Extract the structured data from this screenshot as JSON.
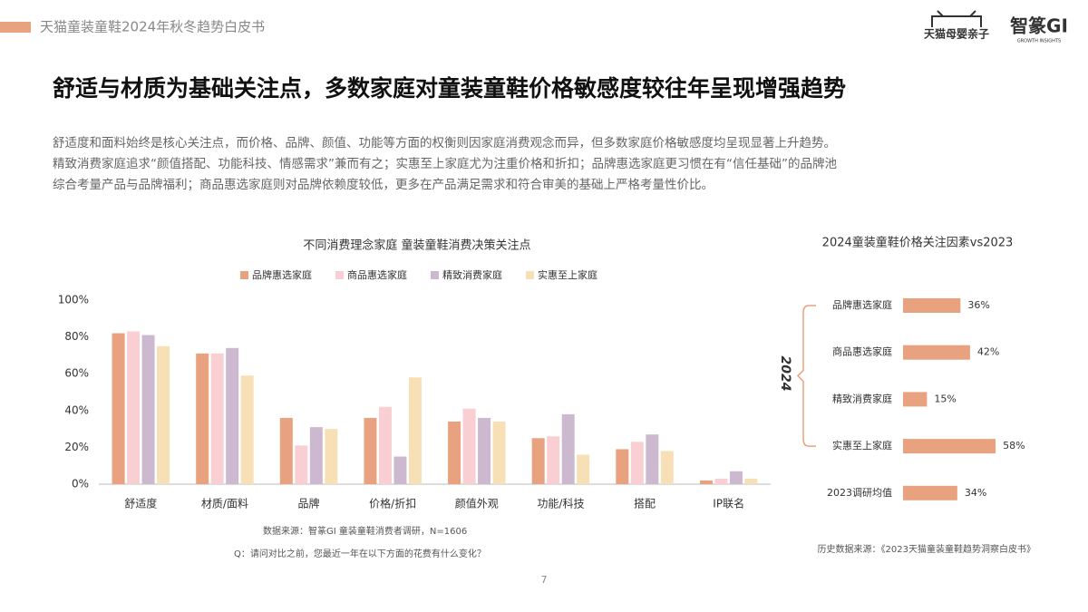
{
  "header": {
    "report": "天猫童装童鞋2024年秋冬趋势白皮书",
    "logo_left": "天猫母婴亲子",
    "logo_right": "智篆GI",
    "logo_right_sub": "GROWTH INSIGHTS"
  },
  "title": "舒适与材质为基础关注点，多数家庭对童装童鞋价格敏感度较往年呈现增强趋势",
  "paragraph": [
    "舒适度和面料始终是核心关注点，而价格、品牌、颜值、功能等方面的权衡则因家庭消费观念而异，但多数家庭价格敏感度均呈现显著上升趋势。",
    "精致消费家庭追求“颜值搭配、功能科技、情感需求”兼而有之；实惠至上家庭尤为注重价格和折扣；品牌惠选家庭更习惯在有“信任基础”的品牌池",
    "综合考量产品与品牌福利；商品惠选家庭则对品牌依赖度较低，更多在产品满足需求和符合审美的基础上严格考量性价比。"
  ],
  "page_number": "7",
  "chart_data": [
    {
      "type": "bar",
      "title": "不同消费理念家庭 童装童鞋消费决策关注点",
      "categories": [
        "舒适度",
        "材质/面料",
        "品牌",
        "价格/折扣",
        "颜值外观",
        "功能/科技",
        "搭配",
        "IP联名"
      ],
      "series": [
        {
          "name": "品牌惠选家庭",
          "color": "#e8a27f",
          "values": [
            82,
            71,
            36,
            36,
            34,
            25,
            19,
            2
          ]
        },
        {
          "name": "商品惠选家庭",
          "color": "#f9cfd3",
          "values": [
            83,
            71,
            21,
            42,
            41,
            26,
            23,
            3
          ]
        },
        {
          "name": "精致消费家庭",
          "color": "#cdb9cf",
          "values": [
            81,
            74,
            31,
            15,
            36,
            38,
            27,
            7
          ]
        },
        {
          "name": "实惠至上家庭",
          "color": "#f7e0b5",
          "values": [
            75,
            59,
            30,
            58,
            34,
            16,
            18,
            3
          ]
        }
      ],
      "ylim": [
        0,
        100
      ],
      "yticks": [
        {
          "value": 0,
          "label": "0%"
        },
        {
          "value": 20,
          "label": "20%"
        },
        {
          "value": 40,
          "label": "40%"
        },
        {
          "value": 60,
          "label": "60%"
        },
        {
          "value": 80,
          "label": "80%"
        },
        {
          "value": 100,
          "label": "100%"
        }
      ],
      "legend": "top",
      "grid": false,
      "source": "数据来源：智篆GI 童装童鞋消费者调研，N=1606",
      "note": "Q：请问对比之前，您最近一年在以下方面的花费有什么变化？"
    },
    {
      "type": "hbar",
      "title": "2024童装童鞋价格关注因素vs2023",
      "categories": [
        "品牌惠选家庭",
        "商品惠选家庭",
        "精致消费家庭",
        "实惠至上家庭",
        "2023调研均值"
      ],
      "values": [
        36,
        42,
        15,
        58,
        34
      ],
      "value_labels": [
        "36%",
        "42%",
        "15%",
        "58%",
        "34%"
      ],
      "color": "#e8a27f",
      "group_label": "2024",
      "source": "历史数据来源：《2023天猫童装童鞋趋势洞察白皮书》"
    }
  ]
}
